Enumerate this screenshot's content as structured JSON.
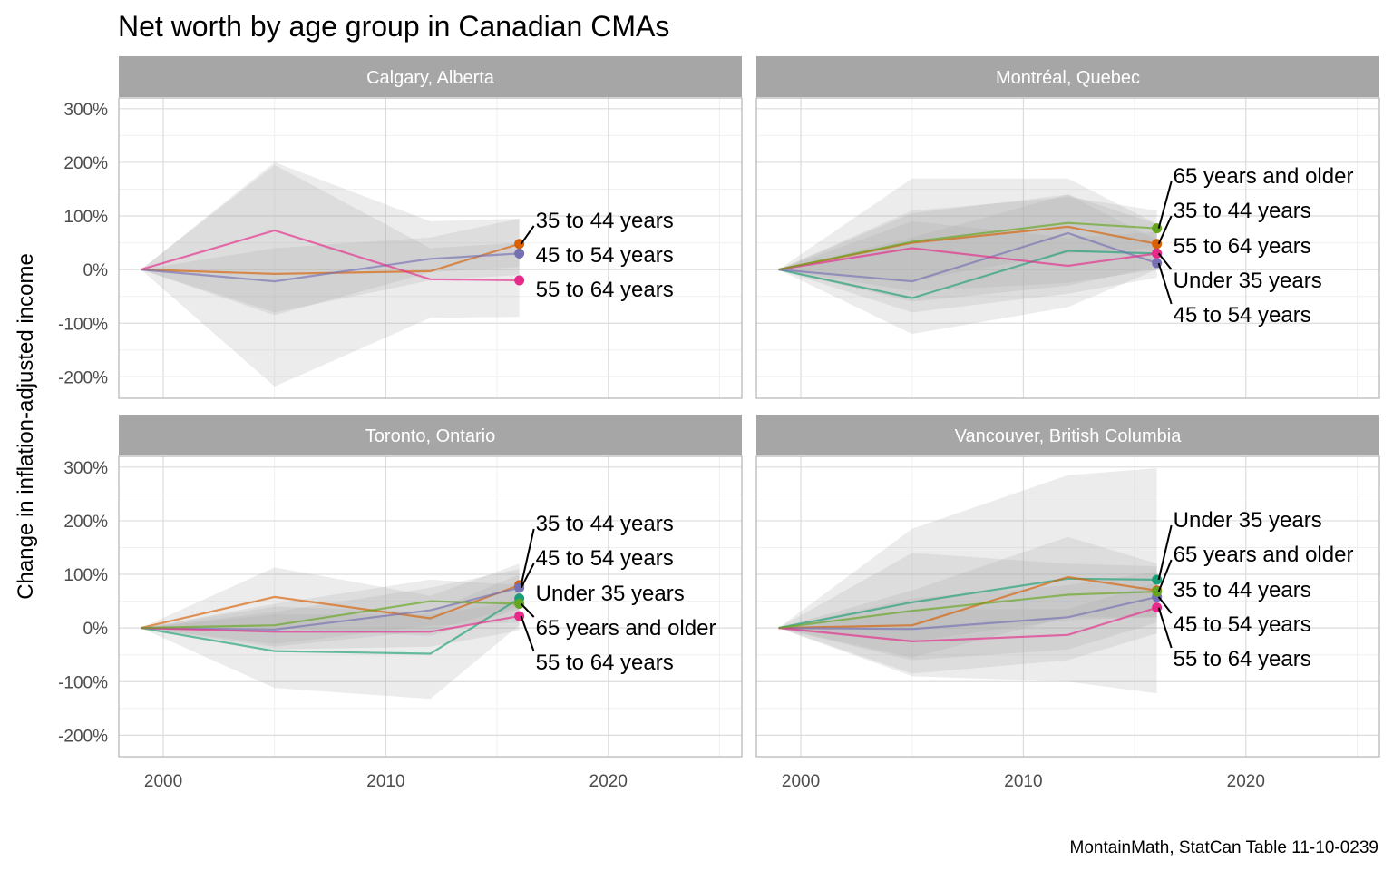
{
  "chart_data": {
    "type": "line",
    "title": "Net worth by age group in Canadian CMAs",
    "ylabel": "Change in inflation-adjusted income",
    "xlabel": "",
    "caption": "MontainMath, StatCan Table 11-10-0239",
    "xlim": [
      1998,
      2026
    ],
    "ylim": [
      -240,
      320
    ],
    "x_ticks": [
      2000,
      2010,
      2020
    ],
    "y_ticks": [
      {
        "value": 300,
        "label": "300%"
      },
      {
        "value": 200,
        "label": "200%"
      },
      {
        "value": 100,
        "label": "100%"
      },
      {
        "value": 0,
        "label": "0%"
      },
      {
        "value": -100,
        "label": "-100%"
      },
      {
        "value": -200,
        "label": "-200%"
      }
    ],
    "grid": true,
    "legend": "none",
    "series_colors": {
      "Under 35 years": "#1b9e77",
      "35 to 44 years": "#d95f02",
      "45 to 54 years": "#7570b3",
      "55 to 64 years": "#e7298a",
      "65 years and older": "#66a61e"
    },
    "panels": [
      {
        "name": "Calgary, Alberta",
        "series": [
          {
            "name": "35 to 44 years",
            "x": [
              1999,
              2005,
              2012,
              2016
            ],
            "values": [
              0,
              -8,
              -3,
              48
            ],
            "band_low": [
              0,
              -80,
              -20,
              -10
            ],
            "band_high": [
              0,
              40,
              60,
              95
            ]
          },
          {
            "name": "45 to 54 years",
            "x": [
              1999,
              2005,
              2012,
              2016
            ],
            "values": [
              0,
              -22,
              20,
              30
            ],
            "band_low": [
              0,
              -85,
              -5,
              5
            ],
            "band_high": [
              0,
              200,
              90,
              95
            ]
          },
          {
            "name": "55 to 64 years",
            "x": [
              1999,
              2005,
              2012,
              2016
            ],
            "values": [
              0,
              73,
              -18,
              -20
            ],
            "band_low": [
              0,
              -218,
              -90,
              -88
            ],
            "band_high": [
              0,
              195,
              40,
              50
            ]
          }
        ],
        "labels": [
          {
            "text": "35 to 44 years",
            "series": "35 to 44 years"
          },
          {
            "text": "45 to 54 years",
            "series": "45 to 54 years"
          },
          {
            "text": "55 to 64 years",
            "series": "55 to 64 years"
          }
        ]
      },
      {
        "name": "Montréal, Quebec",
        "series": [
          {
            "name": "Under 35 years",
            "x": [
              1999,
              2005,
              2012,
              2016
            ],
            "values": [
              0,
              -53,
              35,
              30
            ],
            "band_low": [
              0,
              -120,
              -70,
              0
            ],
            "band_high": [
              0,
              105,
              140,
              85
            ]
          },
          {
            "name": "35 to 44 years",
            "x": [
              1999,
              2005,
              2012,
              2016
            ],
            "values": [
              0,
              50,
              80,
              48
            ],
            "band_low": [
              0,
              -60,
              -30,
              5
            ],
            "band_high": [
              0,
              170,
              170,
              85
            ]
          },
          {
            "name": "45 to 54 years",
            "x": [
              1999,
              2005,
              2012,
              2016
            ],
            "values": [
              0,
              -22,
              68,
              12
            ],
            "band_low": [
              0,
              -80,
              -45,
              -15
            ],
            "band_high": [
              0,
              60,
              140,
              55
            ]
          },
          {
            "name": "55 to 64 years",
            "x": [
              1999,
              2005,
              2012,
              2016
            ],
            "values": [
              0,
              40,
              7,
              30
            ],
            "band_low": [
              0,
              -40,
              -25,
              0
            ],
            "band_high": [
              0,
              90,
              60,
              70
            ]
          },
          {
            "name": "65 years and older",
            "x": [
              1999,
              2005,
              2012,
              2016
            ],
            "values": [
              0,
              52,
              87,
              77
            ],
            "band_low": [
              0,
              -20,
              30,
              40
            ],
            "band_high": [
              0,
              110,
              135,
              110
            ]
          }
        ],
        "labels": [
          {
            "text": "65 years and older",
            "series": "65 years and older"
          },
          {
            "text": "35 to 44 years",
            "series": "35 to 44 years"
          },
          {
            "text": "55 to 64 years",
            "series": "55 to 64 years"
          },
          {
            "text": "Under 35 years",
            "series": "Under 35 years"
          },
          {
            "text": "45 to 54 years",
            "series": "45 to 54 years"
          }
        ]
      },
      {
        "name": "Toronto, Ontario",
        "series": [
          {
            "name": "Under 35 years",
            "x": [
              1999,
              2005,
              2012,
              2016
            ],
            "values": [
              0,
              -43,
              -48,
              55
            ],
            "band_low": [
              0,
              -112,
              -132,
              5
            ],
            "band_high": [
              0,
              40,
              30,
              100
            ]
          },
          {
            "name": "35 to 44 years",
            "x": [
              1999,
              2005,
              2012,
              2016
            ],
            "values": [
              0,
              58,
              18,
              80
            ],
            "band_low": [
              0,
              0,
              -15,
              35
            ],
            "band_high": [
              0,
              113,
              60,
              120
            ]
          },
          {
            "name": "45 to 54 years",
            "x": [
              1999,
              2005,
              2012,
              2016
            ],
            "values": [
              0,
              -3,
              33,
              75
            ],
            "band_low": [
              0,
              -35,
              -5,
              40
            ],
            "band_high": [
              0,
              30,
              75,
              110
            ]
          },
          {
            "name": "55 to 64 years",
            "x": [
              1999,
              2005,
              2012,
              2016
            ],
            "values": [
              0,
              -7,
              -7,
              22
            ],
            "band_low": [
              0,
              -40,
              -35,
              -5
            ],
            "band_high": [
              0,
              25,
              25,
              50
            ]
          },
          {
            "name": "65 years and older",
            "x": [
              1999,
              2005,
              2012,
              2016
            ],
            "values": [
              0,
              5,
              50,
              45
            ],
            "band_low": [
              0,
              -30,
              5,
              10
            ],
            "band_high": [
              0,
              45,
              90,
              80
            ]
          }
        ],
        "labels": [
          {
            "text": "35 to 44 years",
            "series": "35 to 44 years"
          },
          {
            "text": "45 to 54 years",
            "series": "45 to 54 years"
          },
          {
            "text": "Under 35 years",
            "series": "Under 35 years"
          },
          {
            "text": "65 years and older",
            "series": "65 years and older"
          },
          {
            "text": "55 to 64 years",
            "series": "55 to 64 years"
          }
        ]
      },
      {
        "name": "Vancouver, British Columbia",
        "series": [
          {
            "name": "Under 35 years",
            "x": [
              1999,
              2005,
              2012,
              2016
            ],
            "values": [
              0,
              48,
              92,
              90
            ],
            "band_low": [
              0,
              -90,
              -100,
              -122
            ],
            "band_high": [
              0,
              185,
              285,
              298
            ]
          },
          {
            "name": "35 to 44 years",
            "x": [
              1999,
              2005,
              2012,
              2016
            ],
            "values": [
              0,
              5,
              95,
              70
            ],
            "band_low": [
              0,
              -55,
              20,
              20
            ],
            "band_high": [
              0,
              70,
              170,
              120
            ]
          },
          {
            "name": "45 to 54 years",
            "x": [
              1999,
              2005,
              2012,
              2016
            ],
            "values": [
              0,
              -2,
              20,
              58
            ],
            "band_low": [
              0,
              -60,
              -40,
              10
            ],
            "band_high": [
              0,
              55,
              80,
              105
            ]
          },
          {
            "name": "55 to 64 years",
            "x": [
              1999,
              2005,
              2012,
              2016
            ],
            "values": [
              0,
              -25,
              -13,
              38
            ],
            "band_low": [
              0,
              -85,
              -60,
              -10
            ],
            "band_high": [
              0,
              35,
              35,
              85
            ]
          },
          {
            "name": "65 years and older",
            "x": [
              1999,
              2005,
              2012,
              2016
            ],
            "values": [
              0,
              32,
              62,
              68
            ],
            "band_low": [
              0,
              -25,
              15,
              20
            ],
            "band_high": [
              0,
              140,
              120,
              115
            ]
          }
        ],
        "labels": [
          {
            "text": "Under 35 years",
            "series": "Under 35 years"
          },
          {
            "text": "65 years and older",
            "series": "65 years and older"
          },
          {
            "text": "35 to 44 years",
            "series": "35 to 44 years"
          },
          {
            "text": "45 to 54 years",
            "series": "45 to 54 years"
          },
          {
            "text": "55 to 64 years",
            "series": "55 to 64 years"
          }
        ]
      }
    ]
  }
}
